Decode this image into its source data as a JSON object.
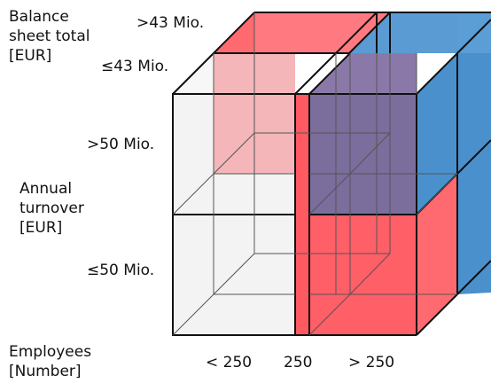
{
  "labels": {
    "balance_sheet_axis": [
      "Balance",
      "sheet total",
      "[EUR]"
    ],
    "bs_high": ">43 Mio.",
    "bs_low": "≤43 Mio.",
    "turnover_axis": [
      "Annual",
      "turnover",
      "[EUR]"
    ],
    "to_high": ">50 Mio.",
    "to_low": "≤50 Mio.",
    "employees_axis": [
      "Employees",
      "[Number]"
    ],
    "emp_low": "< 250",
    "emp_mid": "250",
    "emp_high": "> 250"
  },
  "colors": {
    "white_block": "#f0f0f0",
    "red_block": "#ff4d55",
    "blue_block": "#4a90cc",
    "purple_overlap": "#7d6f9e",
    "pink_overlap": "#f3b8bb",
    "edge": "#111111"
  }
}
